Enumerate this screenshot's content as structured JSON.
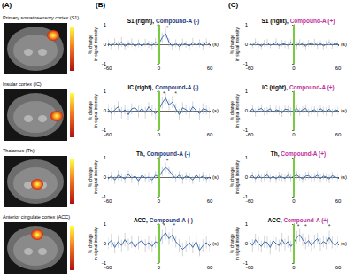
{
  "figure": {
    "panel_labels": [
      "(A)",
      "(B)",
      "(C)"
    ],
    "brain_panels": [
      "Primary somatosensory cortex (S1)",
      "Insular cortex (IC)",
      "Thalamus (Th)",
      "Anterior cingulate cortex (ACC)"
    ]
  },
  "chart_data": [
    {
      "type": "line",
      "column": "(B)",
      "title": "S1 (right), Compound-A (-)",
      "highlight": "Compound-A (-)",
      "highlight_color": "#1f3a7a",
      "x": [
        -60,
        -56,
        -52,
        -48,
        -44,
        -40,
        -36,
        -32,
        -28,
        -24,
        -20,
        -16,
        -12,
        -8,
        -4,
        0,
        4,
        8,
        12,
        16,
        20,
        24,
        28,
        32,
        36,
        40,
        44,
        48,
        52,
        56,
        60
      ],
      "values": [
        0.05,
        -0.08,
        0.1,
        -0.05,
        0.12,
        -0.1,
        0.02,
        0.08,
        -0.12,
        0.05,
        -0.1,
        0.08,
        0.0,
        -0.06,
        0.1,
        0.02,
        0.35,
        0.55,
        0.1,
        -0.1,
        0.05,
        -0.12,
        0.08,
        0.0,
        -0.1,
        0.1,
        -0.05,
        0.05,
        -0.08,
        0.1,
        0.0
      ],
      "errors": [
        0.2,
        0.18,
        0.22,
        0.2,
        0.25,
        0.2,
        0.18,
        0.22,
        0.2,
        0.2,
        0.22,
        0.2,
        0.18,
        0.2,
        0.22,
        0.2,
        0.25,
        0.25,
        0.22,
        0.2,
        0.2,
        0.22,
        0.2,
        0.18,
        0.2,
        0.22,
        0.2,
        0.2,
        0.22,
        0.2,
        0.2
      ],
      "color": "#3b6fb6",
      "xlim": [
        -60,
        60
      ],
      "xticks": [
        -60,
        0,
        60
      ],
      "ylim": [
        -1,
        1
      ],
      "yticks": [
        -1,
        0,
        1
      ],
      "x_label": "(s)",
      "y_label": [
        "% change",
        "in signal intensity"
      ],
      "grid": false,
      "stimulus_line": {
        "x": 0,
        "color": "#7ac943"
      },
      "annotations": [
        {
          "x": 10,
          "y": 0.85,
          "text": "*"
        }
      ]
    },
    {
      "type": "line",
      "column": "(B)",
      "title": "IC (right), Compound-A (-)",
      "highlight": "Compound-A (-)",
      "highlight_color": "#1f3a7a",
      "x": [
        -60,
        -56,
        -52,
        -48,
        -44,
        -40,
        -36,
        -32,
        -28,
        -24,
        -20,
        -16,
        -12,
        -8,
        -4,
        0,
        4,
        8,
        12,
        16,
        20,
        24,
        28,
        32,
        36,
        40,
        44,
        48,
        52,
        56,
        60
      ],
      "values": [
        0.1,
        -0.15,
        0.05,
        0.2,
        -0.1,
        0.05,
        -0.2,
        0.1,
        0.15,
        -0.05,
        0.1,
        -0.1,
        0.2,
        0.0,
        -0.15,
        0.05,
        0.4,
        0.65,
        0.3,
        0.45,
        0.1,
        -0.2,
        0.15,
        0.05,
        -0.1,
        0.2,
        0.0,
        -0.15,
        0.1,
        0.05,
        -0.1
      ],
      "errors": [
        0.25,
        0.3,
        0.25,
        0.28,
        0.3,
        0.25,
        0.3,
        0.28,
        0.25,
        0.3,
        0.28,
        0.3,
        0.25,
        0.28,
        0.3,
        0.25,
        0.3,
        0.3,
        0.28,
        0.3,
        0.25,
        0.3,
        0.28,
        0.25,
        0.3,
        0.28,
        0.25,
        0.3,
        0.28,
        0.25,
        0.3
      ],
      "color": "#3b6fb6",
      "xlim": [
        -60,
        60
      ],
      "xticks": [
        -60,
        0,
        60
      ],
      "ylim": [
        -1,
        1
      ],
      "yticks": [
        -1,
        0,
        1
      ],
      "x_label": "(s)",
      "y_label": [
        "% change",
        "in signal intensity"
      ],
      "grid": false,
      "stimulus_line": {
        "x": 0,
        "color": "#7ac943"
      },
      "annotations": [
        {
          "x": 6,
          "y": 0.88,
          "text": "*"
        },
        {
          "x": 20,
          "y": 0.88,
          "text": "*"
        }
      ]
    },
    {
      "type": "line",
      "column": "(B)",
      "title": "Th, Compound-A (-)",
      "highlight": "Compound-A (-)",
      "highlight_color": "#1f3a7a",
      "x": [
        -60,
        -56,
        -52,
        -48,
        -44,
        -40,
        -36,
        -32,
        -28,
        -24,
        -20,
        -16,
        -12,
        -8,
        -4,
        0,
        4,
        8,
        12,
        16,
        20,
        24,
        28,
        32,
        36,
        40,
        44,
        48,
        52,
        56,
        60
      ],
      "values": [
        -0.1,
        0.05,
        -0.15,
        0.1,
        0.0,
        -0.1,
        0.15,
        -0.05,
        0.05,
        -0.2,
        0.1,
        -0.05,
        0.0,
        -0.15,
        0.1,
        0.0,
        0.3,
        0.5,
        0.35,
        0.1,
        -0.05,
        0.1,
        -0.1,
        0.05,
        0.0,
        -0.15,
        0.1,
        -0.05,
        0.05,
        -0.1,
        0.0
      ],
      "errors": [
        0.2,
        0.22,
        0.2,
        0.25,
        0.2,
        0.22,
        0.2,
        0.25,
        0.2,
        0.22,
        0.2,
        0.22,
        0.25,
        0.2,
        0.22,
        0.2,
        0.25,
        0.25,
        0.22,
        0.2,
        0.22,
        0.2,
        0.25,
        0.2,
        0.22,
        0.2,
        0.25,
        0.2,
        0.22,
        0.2,
        0.2
      ],
      "color": "#3b6fb6",
      "xlim": [
        -60,
        60
      ],
      "xticks": [
        -60,
        0,
        60
      ],
      "ylim": [
        -1,
        1
      ],
      "yticks": [
        -1,
        0,
        1
      ],
      "x_label": "(s)",
      "y_label": [
        "% change",
        "in signal intensity"
      ],
      "grid": false,
      "stimulus_line": {
        "x": 0,
        "color": "#7ac943"
      },
      "annotations": [
        {
          "x": 10,
          "y": 0.85,
          "text": "*"
        }
      ]
    },
    {
      "type": "line",
      "column": "(B)",
      "title": "ACC, Compound-A (-)",
      "highlight": "Compound-A (-)",
      "highlight_color": "#1f3a7a",
      "x": [
        -60,
        -56,
        -52,
        -48,
        -44,
        -40,
        -36,
        -32,
        -28,
        -24,
        -20,
        -16,
        -12,
        -8,
        -4,
        0,
        4,
        8,
        12,
        16,
        20,
        24,
        28,
        32,
        36,
        40,
        44,
        48,
        52,
        56,
        60
      ],
      "values": [
        0.0,
        0.15,
        -0.2,
        0.1,
        -0.1,
        0.2,
        -0.05,
        0.1,
        -0.2,
        0.05,
        0.15,
        -0.1,
        0.05,
        -0.15,
        0.1,
        0.0,
        0.35,
        0.55,
        0.25,
        0.45,
        0.1,
        -0.1,
        -0.3,
        -0.15,
        0.05,
        -0.2,
        0.1,
        -0.35,
        -0.1,
        0.05,
        -0.15
      ],
      "errors": [
        0.3,
        0.35,
        0.3,
        0.32,
        0.3,
        0.35,
        0.3,
        0.32,
        0.3,
        0.35,
        0.3,
        0.32,
        0.35,
        0.3,
        0.32,
        0.3,
        0.35,
        0.35,
        0.32,
        0.35,
        0.3,
        0.32,
        0.35,
        0.3,
        0.32,
        0.3,
        0.35,
        0.3,
        0.32,
        0.3,
        0.3
      ],
      "color": "#3b6fb6",
      "xlim": [
        -60,
        60
      ],
      "xticks": [
        -60,
        0,
        60
      ],
      "ylim": [
        -1,
        1
      ],
      "yticks": [
        -1,
        0,
        1
      ],
      "x_label": "(s)",
      "y_label": [
        "% change",
        "in signal intensity"
      ],
      "grid": false,
      "stimulus_line": {
        "x": 0,
        "color": "#7ac943"
      },
      "annotations": [
        {
          "x": 6,
          "y": 0.92,
          "text": "*"
        },
        {
          "x": 18,
          "y": 0.92,
          "text": "*"
        }
      ]
    },
    {
      "type": "line",
      "column": "(C)",
      "title": "S1 (right), Compound-A (+)",
      "highlight": "Compound-A (+)",
      "highlight_color": "#c0309a",
      "x": [
        -60,
        -56,
        -52,
        -48,
        -44,
        -40,
        -36,
        -32,
        -28,
        -24,
        -20,
        -16,
        -12,
        -8,
        -4,
        0,
        4,
        8,
        12,
        16,
        20,
        24,
        28,
        32,
        36,
        40,
        44,
        48,
        52,
        56,
        60
      ],
      "values": [
        0.05,
        -0.05,
        0.1,
        0.0,
        -0.1,
        0.05,
        0.08,
        -0.05,
        0.0,
        0.1,
        -0.08,
        0.05,
        0.0,
        -0.05,
        0.1,
        0.0,
        -0.05,
        0.08,
        0.0,
        -0.1,
        0.05,
        0.0,
        0.08,
        -0.05,
        0.05,
        -0.08,
        0.0,
        0.1,
        -0.05,
        0.05,
        0.0
      ],
      "errors": [
        0.18,
        0.15,
        0.2,
        0.18,
        0.15,
        0.18,
        0.2,
        0.15,
        0.18,
        0.2,
        0.15,
        0.18,
        0.2,
        0.18,
        0.15,
        0.18,
        0.2,
        0.18,
        0.15,
        0.2,
        0.18,
        0.15,
        0.2,
        0.18,
        0.15,
        0.18,
        0.2,
        0.15,
        0.18,
        0.2,
        0.18
      ],
      "color": "#3b6fb6",
      "xlim": [
        -60,
        60
      ],
      "xticks": [
        -60,
        0,
        60
      ],
      "ylim": [
        -1,
        1
      ],
      "yticks": [
        -1,
        0,
        1
      ],
      "x_label": "(s)",
      "y_label": [
        "% change",
        "in signal intensity"
      ],
      "grid": false,
      "stimulus_line": {
        "x": 0,
        "color": "#7ac943"
      },
      "annotations": []
    },
    {
      "type": "line",
      "column": "(C)",
      "title": "IC (right), Compound-A (+)",
      "highlight": "Compound-A (+)",
      "highlight_color": "#c0309a",
      "x": [
        -60,
        -56,
        -52,
        -48,
        -44,
        -40,
        -36,
        -32,
        -28,
        -24,
        -20,
        -16,
        -12,
        -8,
        -4,
        0,
        4,
        8,
        12,
        16,
        20,
        24,
        28,
        32,
        36,
        40,
        44,
        48,
        52,
        56,
        60
      ],
      "values": [
        -0.05,
        0.1,
        -0.1,
        0.05,
        0.12,
        -0.05,
        0.0,
        0.1,
        -0.1,
        0.05,
        0.0,
        -0.12,
        0.08,
        0.05,
        -0.05,
        0.0,
        0.1,
        -0.05,
        0.05,
        0.12,
        -0.1,
        0.0,
        0.05,
        -0.08,
        0.1,
        0.0,
        -0.05,
        0.08,
        -0.1,
        0.05,
        0.0
      ],
      "errors": [
        0.2,
        0.22,
        0.2,
        0.18,
        0.22,
        0.2,
        0.2,
        0.22,
        0.18,
        0.2,
        0.22,
        0.2,
        0.18,
        0.2,
        0.22,
        0.2,
        0.22,
        0.2,
        0.18,
        0.22,
        0.2,
        0.2,
        0.18,
        0.22,
        0.2,
        0.2,
        0.22,
        0.18,
        0.2,
        0.22,
        0.2
      ],
      "color": "#3b6fb6",
      "xlim": [
        -60,
        60
      ],
      "xticks": [
        -60,
        0,
        60
      ],
      "ylim": [
        -1,
        1
      ],
      "yticks": [
        -1,
        0,
        1
      ],
      "x_label": "(s)",
      "y_label": [
        "% change",
        "in signal intensity"
      ],
      "grid": false,
      "stimulus_line": {
        "x": 0,
        "color": "#7ac943"
      },
      "annotations": []
    },
    {
      "type": "line",
      "column": "(C)",
      "title": "Th, Compound-A (+)",
      "highlight": "Compound-A (+)",
      "highlight_color": "#c0309a",
      "x": [
        -60,
        -56,
        -52,
        -48,
        -44,
        -40,
        -36,
        -32,
        -28,
        -24,
        -20,
        -16,
        -12,
        -8,
        -4,
        0,
        4,
        8,
        12,
        16,
        20,
        24,
        28,
        32,
        36,
        40,
        44,
        48,
        52,
        56,
        60
      ],
      "values": [
        0.0,
        0.08,
        -0.1,
        0.1,
        -0.05,
        0.0,
        0.12,
        -0.08,
        0.05,
        -0.1,
        0.05,
        0.0,
        -0.08,
        0.1,
        -0.05,
        0.05,
        0.1,
        0.0,
        -0.1,
        0.05,
        0.08,
        -0.05,
        0.0,
        0.1,
        -0.08,
        0.05,
        0.0,
        -0.1,
        0.08,
        0.0,
        -0.05
      ],
      "errors": [
        0.2,
        0.18,
        0.2,
        0.22,
        0.18,
        0.2,
        0.22,
        0.2,
        0.18,
        0.2,
        0.22,
        0.2,
        0.2,
        0.18,
        0.2,
        0.22,
        0.2,
        0.18,
        0.2,
        0.22,
        0.2,
        0.18,
        0.2,
        0.2,
        0.22,
        0.18,
        0.2,
        0.22,
        0.2,
        0.18,
        0.2
      ],
      "color": "#3b6fb6",
      "xlim": [
        -60,
        60
      ],
      "xticks": [
        -60,
        0,
        60
      ],
      "ylim": [
        -1,
        1
      ],
      "yticks": [
        -1,
        0,
        1
      ],
      "x_label": "(s)",
      "y_label": [
        "% change",
        "in signal intensity"
      ],
      "grid": false,
      "stimulus_line": {
        "x": 0,
        "color": "#7ac943"
      },
      "annotations": []
    },
    {
      "type": "line",
      "column": "(C)",
      "title": "ACC, Compound-A (+)",
      "highlight": "Compound-A (+)",
      "highlight_color": "#c0309a",
      "x": [
        -60,
        -56,
        -52,
        -48,
        -44,
        -40,
        -36,
        -32,
        -28,
        -24,
        -20,
        -16,
        -12,
        -8,
        -4,
        0,
        4,
        8,
        12,
        16,
        20,
        24,
        28,
        32,
        36,
        40,
        44,
        48,
        52,
        56,
        60
      ],
      "values": [
        0.1,
        -0.1,
        0.2,
        0.0,
        -0.15,
        0.1,
        0.05,
        -0.2,
        0.15,
        0.0,
        -0.1,
        0.2,
        -0.05,
        0.1,
        -0.15,
        0.05,
        0.3,
        0.45,
        0.2,
        0.0,
        0.15,
        -0.1,
        0.1,
        0.25,
        -0.05,
        0.1,
        0.0,
        0.3,
        0.05,
        -0.1,
        0.1
      ],
      "errors": [
        0.3,
        0.32,
        0.3,
        0.35,
        0.3,
        0.32,
        0.3,
        0.35,
        0.3,
        0.32,
        0.3,
        0.35,
        0.3,
        0.32,
        0.3,
        0.3,
        0.35,
        0.35,
        0.32,
        0.3,
        0.32,
        0.3,
        0.35,
        0.3,
        0.32,
        0.3,
        0.3,
        0.35,
        0.3,
        0.32,
        0.3
      ],
      "color": "#3b6fb6",
      "xlim": [
        -60,
        60
      ],
      "xticks": [
        -60,
        0,
        60
      ],
      "ylim": [
        -1,
        1
      ],
      "yticks": [
        -1,
        0,
        1
      ],
      "x_label": "(s)",
      "y_label": [
        "% change",
        "in signal intensity"
      ],
      "grid": false,
      "stimulus_line": {
        "x": 0,
        "color": "#7ac943"
      },
      "annotations": [
        {
          "x": 6,
          "y": 0.9,
          "text": "*"
        },
        {
          "x": 16,
          "y": 0.9,
          "text": "*"
        },
        {
          "x": 48,
          "y": 0.9,
          "text": "*"
        }
      ]
    }
  ]
}
